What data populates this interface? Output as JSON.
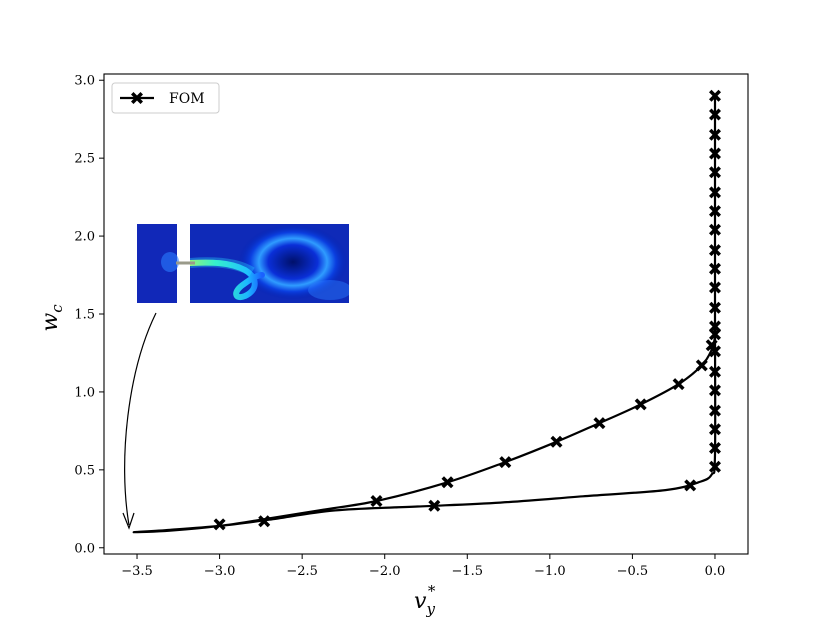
{
  "chart_data": {
    "type": "line",
    "xlabel": "v",
    "xlabel_sub": "y",
    "xlabel_sup": "*",
    "ylabel": "w",
    "ylabel_sub": "c",
    "xlim": [
      -3.7,
      0.2
    ],
    "ylim": [
      -0.04,
      3.04
    ],
    "xticks": [
      -3.5,
      -3.0,
      -2.5,
      -2.0,
      -1.5,
      -1.0,
      -0.5,
      0.0
    ],
    "xtick_labels": [
      "−3.5",
      "−3.0",
      "−2.5",
      "−2.0",
      "−1.5",
      "−1.0",
      "−0.5",
      "0.0"
    ],
    "yticks": [
      0.0,
      0.5,
      1.0,
      1.5,
      2.0,
      2.5,
      3.0
    ],
    "ytick_labels": [
      "0.0",
      "0.5",
      "1.0",
      "1.5",
      "2.0",
      "2.5",
      "3.0"
    ],
    "grid": false,
    "legend_position": "top-left",
    "series": [
      {
        "name": "FOM",
        "color": "#000000",
        "marker": "X",
        "markers": [
          {
            "x": -3.0,
            "y": 0.15
          },
          {
            "x": -2.73,
            "y": 0.17
          },
          {
            "x": -2.05,
            "y": 0.3
          },
          {
            "x": -1.7,
            "y": 0.27
          },
          {
            "x": -1.62,
            "y": 0.42
          },
          {
            "x": -1.27,
            "y": 0.55
          },
          {
            "x": -0.96,
            "y": 0.68
          },
          {
            "x": -0.7,
            "y": 0.8
          },
          {
            "x": -0.45,
            "y": 0.92
          },
          {
            "x": -0.22,
            "y": 1.05
          },
          {
            "x": -0.15,
            "y": 0.4
          },
          {
            "x": -0.08,
            "y": 1.17
          },
          {
            "x": -0.02,
            "y": 1.3
          },
          {
            "x": 0.0,
            "y": 0.52
          },
          {
            "x": 0.0,
            "y": 0.64
          },
          {
            "x": 0.0,
            "y": 0.76
          },
          {
            "x": 0.0,
            "y": 0.88
          },
          {
            "x": 0.0,
            "y": 1.01
          },
          {
            "x": 0.0,
            "y": 1.13
          },
          {
            "x": 0.0,
            "y": 1.26
          },
          {
            "x": 0.0,
            "y": 1.37
          },
          {
            "x": 0.0,
            "y": 1.42
          },
          {
            "x": 0.0,
            "y": 1.54
          },
          {
            "x": 0.0,
            "y": 1.67
          },
          {
            "x": 0.0,
            "y": 1.79
          },
          {
            "x": 0.0,
            "y": 1.91
          },
          {
            "x": 0.0,
            "y": 2.04
          },
          {
            "x": 0.0,
            "y": 2.16
          },
          {
            "x": 0.0,
            "y": 2.28
          },
          {
            "x": 0.0,
            "y": 2.41
          },
          {
            "x": 0.0,
            "y": 2.53
          },
          {
            "x": 0.0,
            "y": 2.65
          },
          {
            "x": 0.0,
            "y": 2.78
          },
          {
            "x": 0.0,
            "y": 2.9
          }
        ],
        "curve": [
          {
            "x": 0.0,
            "y": 2.9
          },
          {
            "x": 0.0,
            "y": 1.5
          },
          {
            "x": 0.0,
            "y": 0.6
          },
          {
            "x": -0.02,
            "y": 0.47
          },
          {
            "x": -0.1,
            "y": 0.42
          },
          {
            "x": -0.3,
            "y": 0.37
          },
          {
            "x": -0.8,
            "y": 0.33
          },
          {
            "x": -1.3,
            "y": 0.29
          },
          {
            "x": -1.8,
            "y": 0.265
          },
          {
            "x": -2.3,
            "y": 0.24
          },
          {
            "x": -2.7,
            "y": 0.18
          },
          {
            "x": -3.0,
            "y": 0.14
          },
          {
            "x": -3.3,
            "y": 0.115
          },
          {
            "x": -3.52,
            "y": 0.1
          },
          {
            "x": -3.3,
            "y": 0.11
          },
          {
            "x": -3.0,
            "y": 0.14
          },
          {
            "x": -2.75,
            "y": 0.18
          },
          {
            "x": -2.4,
            "y": 0.24
          },
          {
            "x": -2.05,
            "y": 0.3
          },
          {
            "x": -1.62,
            "y": 0.42
          },
          {
            "x": -1.27,
            "y": 0.55
          },
          {
            "x": -0.96,
            "y": 0.68
          },
          {
            "x": -0.7,
            "y": 0.8
          },
          {
            "x": -0.45,
            "y": 0.92
          },
          {
            "x": -0.22,
            "y": 1.05
          },
          {
            "x": -0.08,
            "y": 1.17
          },
          {
            "x": -0.02,
            "y": 1.27
          },
          {
            "x": 0.0,
            "y": 1.35
          }
        ]
      }
    ],
    "annotation": {
      "type": "arrow-with-inset",
      "points_to": {
        "x": -3.52,
        "y": 0.1
      },
      "inset": "flow field image"
    }
  }
}
